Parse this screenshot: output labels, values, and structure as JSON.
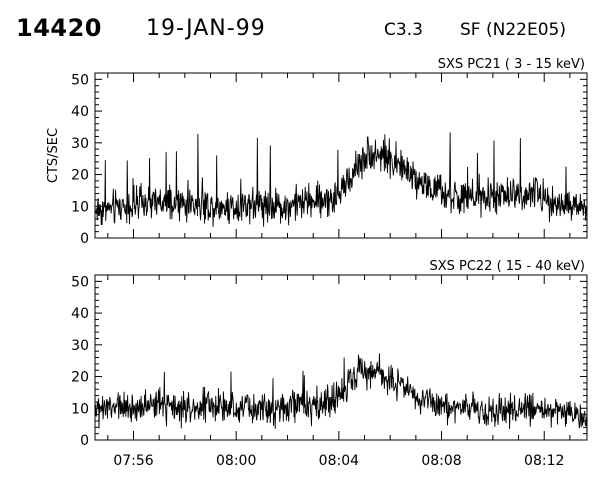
{
  "header": {
    "flare_number": "14420",
    "date": "19-JAN-99",
    "goes_class": "C3.3",
    "location": "SF (N22E05)"
  },
  "chart_data": [
    {
      "type": "line",
      "title": "SXS PC21  (  3 - 15 keV)",
      "ylabel": "CTS/SEC",
      "ylim": [
        0,
        52
      ],
      "yticks": [
        "0",
        "10",
        "20",
        "30",
        "40",
        "50"
      ],
      "xlim": [
        "07:54:30",
        "08:13:40"
      ],
      "grid": false,
      "series": [
        {
          "x": [
            "07:54:30",
            "07:55:00",
            "07:55:30",
            "07:56:00",
            "07:56:30",
            "07:57:00",
            "07:57:30",
            "07:58:00",
            "07:58:30",
            "07:59:00",
            "07:59:30",
            "08:00:00",
            "08:00:30",
            "08:01:00",
            "08:01:30",
            "08:02:00",
            "08:02:30",
            "08:03:00",
            "08:03:30",
            "08:04:00",
            "08:04:30",
            "08:05:00",
            "08:05:30",
            "08:06:00",
            "08:06:30",
            "08:07:00",
            "08:07:30",
            "08:08:00",
            "08:08:30",
            "08:09:00",
            "08:09:30",
            "08:10:00",
            "08:10:30",
            "08:11:00",
            "08:11:30",
            "08:12:00",
            "08:12:30",
            "08:13:00",
            "08:13:30"
          ],
          "values": [
            9,
            9,
            10,
            10,
            11,
            11,
            10,
            11,
            11,
            10,
            10,
            10,
            11,
            11,
            10,
            10,
            11,
            12,
            12,
            13,
            20,
            26,
            27,
            25,
            22,
            19,
            16,
            14,
            13,
            12,
            12,
            13,
            13,
            14,
            14,
            13,
            11,
            10,
            9
          ]
        }
      ]
    },
    {
      "type": "line",
      "title": "SXS PC22  ( 15 - 40 keV)",
      "ylabel": "",
      "ylim": [
        0,
        52
      ],
      "yticks": [
        "0",
        "10",
        "20",
        "30",
        "40",
        "50"
      ],
      "xlim": [
        "07:54:30",
        "08:13:40"
      ],
      "xticks": [
        "07:56",
        "08:00",
        "08:04",
        "08:08",
        "08:12"
      ],
      "grid": false,
      "series": [
        {
          "x": [
            "07:54:30",
            "07:55:00",
            "07:55:30",
            "07:56:00",
            "07:56:30",
            "07:57:00",
            "07:57:30",
            "07:58:00",
            "07:58:30",
            "07:59:00",
            "07:59:30",
            "08:00:00",
            "08:00:30",
            "08:01:00",
            "08:01:30",
            "08:02:00",
            "08:02:30",
            "08:03:00",
            "08:03:30",
            "08:04:00",
            "08:04:30",
            "08:05:00",
            "08:05:30",
            "08:06:00",
            "08:06:30",
            "08:07:00",
            "08:07:30",
            "08:08:00",
            "08:08:30",
            "08:09:00",
            "08:09:30",
            "08:10:00",
            "08:10:30",
            "08:11:00",
            "08:11:30",
            "08:12:00",
            "08:12:30",
            "08:13:00",
            "08:13:30"
          ],
          "values": [
            9,
            10,
            10,
            10,
            11,
            11,
            10,
            10,
            10,
            11,
            10,
            10,
            10,
            10,
            10,
            10,
            11,
            11,
            12,
            14,
            19,
            22,
            22,
            19,
            16,
            14,
            12,
            11,
            10,
            9,
            9,
            9,
            9,
            10,
            10,
            10,
            9,
            8,
            7
          ]
        }
      ]
    }
  ]
}
